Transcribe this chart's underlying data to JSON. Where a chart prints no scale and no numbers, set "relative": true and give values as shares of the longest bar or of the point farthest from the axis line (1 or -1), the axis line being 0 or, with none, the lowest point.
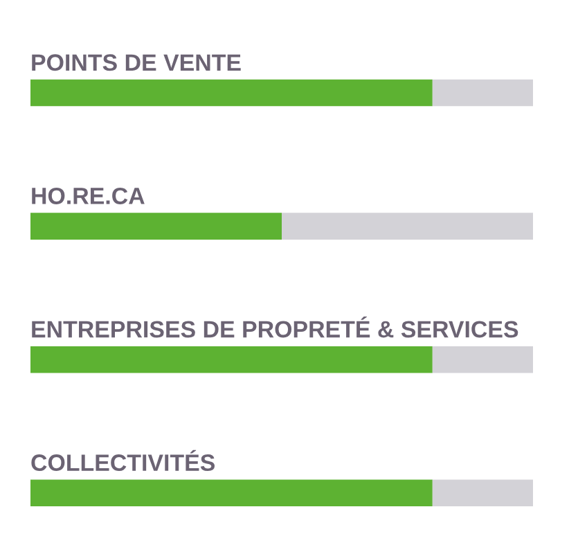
{
  "chart_data": {
    "type": "bar",
    "orientation": "horizontal",
    "stacked": true,
    "relative": true,
    "categories": [
      "POINTS DE VENTE",
      "HO.RE.CA",
      "ENTREPRISES DE PROPRETÉ & SERVICES",
      "COLLECTIVITÉS"
    ],
    "series": [
      {
        "color": "#5db232",
        "values": [
          0.8,
          0.5,
          0.8,
          0.8
        ]
      },
      {
        "color": "#d3d2d7",
        "values": [
          0.2,
          0.5,
          0.2,
          0.2
        ]
      }
    ]
  }
}
